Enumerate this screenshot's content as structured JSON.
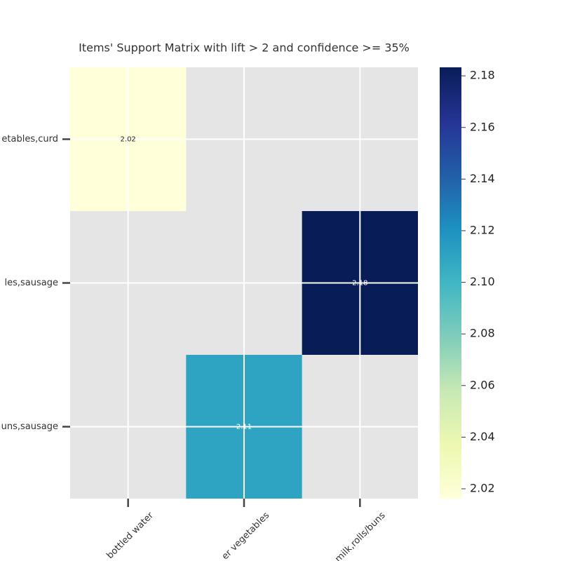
{
  "chart_data": {
    "type": "heatmap",
    "title": "Items' Support Matrix with lift > 2 and confidence >= 35%",
    "x_categories": [
      "bottled water",
      "er vegetables",
      "milk,rolls/buns"
    ],
    "y_categories": [
      "etables,curd",
      "les,sausage",
      "uns,sausage"
    ],
    "values": [
      [
        2.0162,
        null,
        null
      ],
      [
        null,
        null,
        2.1833
      ],
      [
        null,
        2.11,
        null
      ]
    ],
    "value_labels": [
      [
        "2.02",
        null,
        null
      ],
      [
        null,
        null,
        "2.18"
      ],
      [
        null,
        "2.11",
        null
      ]
    ],
    "colormap": "YlGnBu",
    "clim": [
      2.0162,
      2.1833
    ],
    "cticks": [
      2.02,
      2.04,
      2.06,
      2.08,
      {
        "value": 2.1,
        "label": "2.10"
      },
      2.12,
      2.14,
      2.16,
      2.18
    ],
    "grid": true
  }
}
